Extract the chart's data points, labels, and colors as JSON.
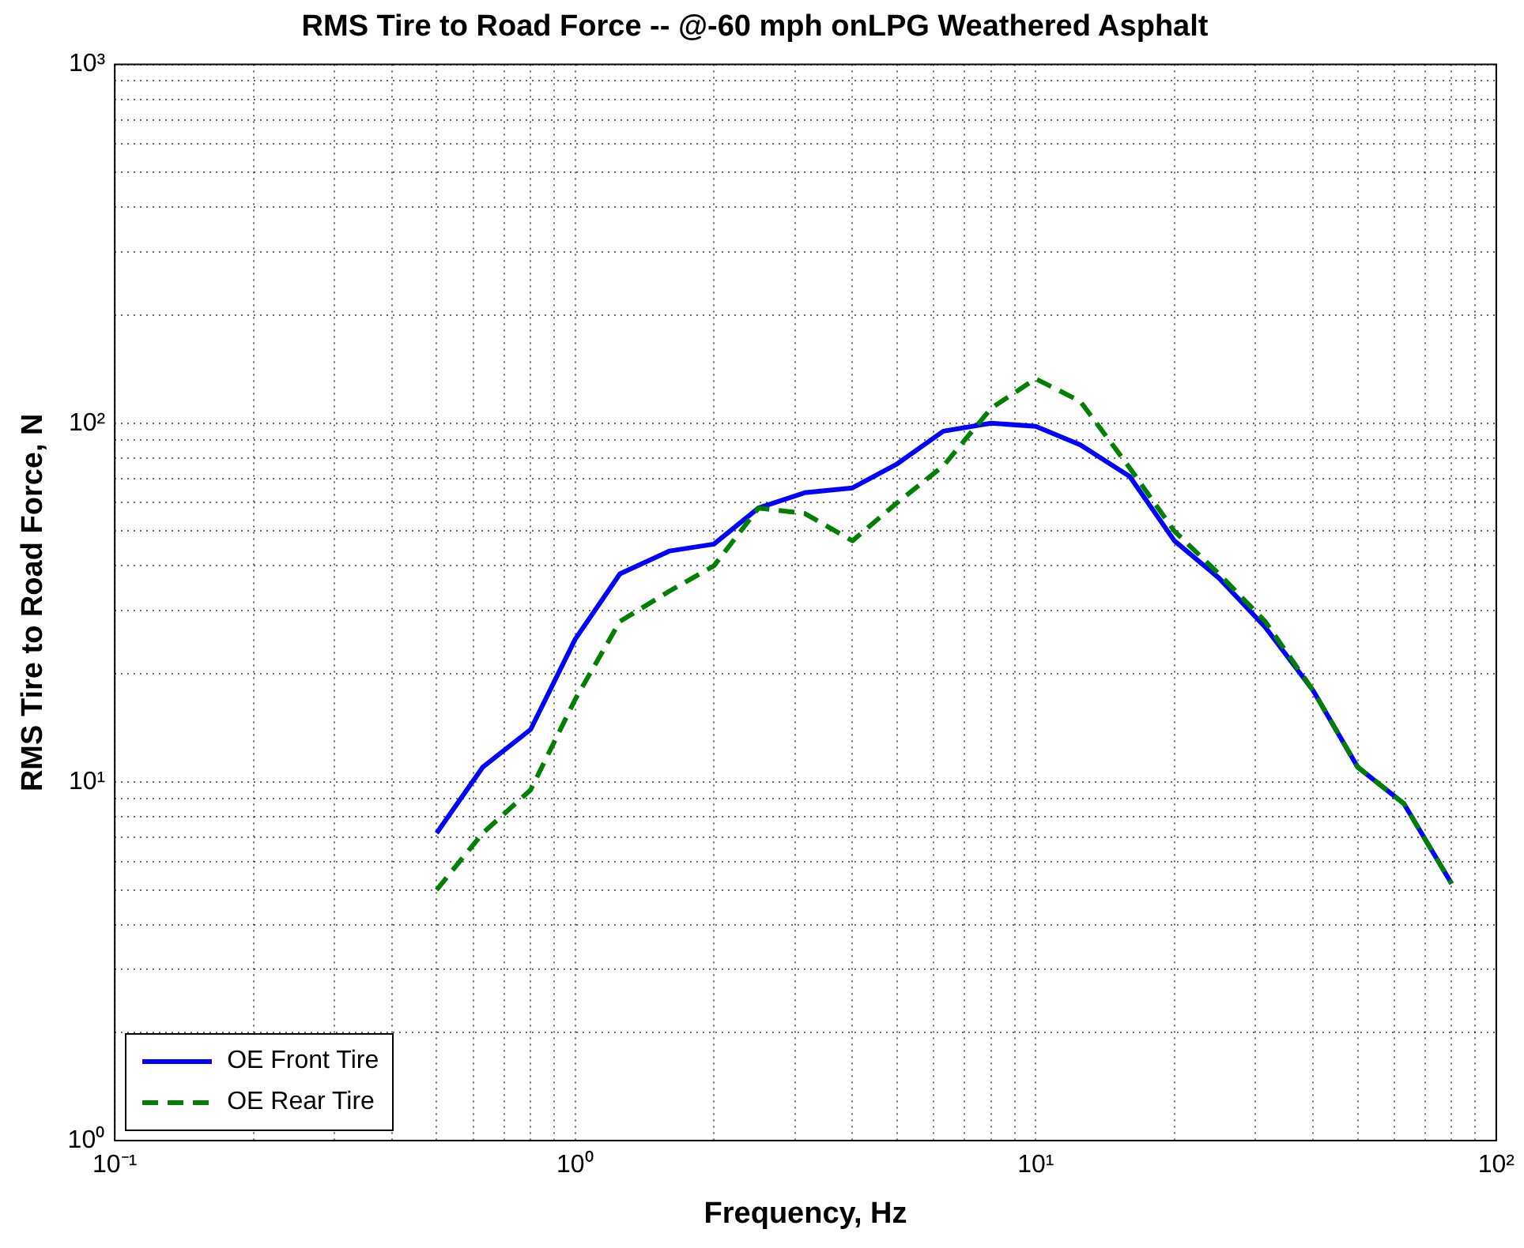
{
  "chart_data": {
    "type": "line",
    "title": "RMS Tire to Road Force -- @-60 mph onLPG Weathered Asphalt",
    "xlabel": "Frequency, Hz",
    "ylabel": "RMS Tire to Road Force, N",
    "log": "xy",
    "grid": true,
    "legend": "bottom left",
    "marker": "none",
    "x": [
      0.5,
      0.63,
      0.8,
      1,
      1.25,
      1.6,
      2,
      2.5,
      3.15,
      4,
      5,
      6.3,
      8,
      10,
      12.5,
      16,
      20,
      25,
      31.5,
      40,
      50,
      63,
      80
    ],
    "xlim": [
      0.1,
      100
    ],
    "ylim": [
      1,
      1000
    ],
    "xticks": [
      {
        "value": 0.1,
        "label": "10⁻¹"
      },
      {
        "value": 0.2,
        "label": null
      },
      {
        "value": 0.3,
        "label": null
      },
      {
        "value": 0.4,
        "label": null
      },
      {
        "value": 0.5,
        "label": null
      },
      {
        "value": 0.6,
        "label": null
      },
      {
        "value": 0.7,
        "label": null
      },
      {
        "value": 0.8,
        "label": null
      },
      {
        "value": 0.9,
        "label": null
      },
      {
        "value": 1,
        "label": "10⁰"
      },
      {
        "value": 2,
        "label": null
      },
      {
        "value": 3,
        "label": null
      },
      {
        "value": 4,
        "label": null
      },
      {
        "value": 5,
        "label": null
      },
      {
        "value": 6,
        "label": null
      },
      {
        "value": 7,
        "label": null
      },
      {
        "value": 8,
        "label": null
      },
      {
        "value": 9,
        "label": null
      },
      {
        "value": 10,
        "label": "10¹"
      },
      {
        "value": 20,
        "label": null
      },
      {
        "value": 30,
        "label": null
      },
      {
        "value": 40,
        "label": null
      },
      {
        "value": 50,
        "label": null
      },
      {
        "value": 60,
        "label": null
      },
      {
        "value": 70,
        "label": null
      },
      {
        "value": 80,
        "label": null
      },
      {
        "value": 90,
        "label": null
      },
      {
        "value": 100,
        "label": "10²"
      }
    ],
    "yticks": [
      {
        "value": 1,
        "label": "10⁰"
      },
      {
        "value": 2,
        "label": null
      },
      {
        "value": 3,
        "label": null
      },
      {
        "value": 4,
        "label": null
      },
      {
        "value": 5,
        "label": null
      },
      {
        "value": 6,
        "label": null
      },
      {
        "value": 7,
        "label": null
      },
      {
        "value": 8,
        "label": null
      },
      {
        "value": 9,
        "label": null
      },
      {
        "value": 10,
        "label": "10¹"
      },
      {
        "value": 20,
        "label": null
      },
      {
        "value": 30,
        "label": null
      },
      {
        "value": 40,
        "label": null
      },
      {
        "value": 50,
        "label": null
      },
      {
        "value": 60,
        "label": null
      },
      {
        "value": 70,
        "label": null
      },
      {
        "value": 80,
        "label": null
      },
      {
        "value": 90,
        "label": null
      },
      {
        "value": 100,
        "label": "10²"
      },
      {
        "value": 200,
        "label": null
      },
      {
        "value": 300,
        "label": null
      },
      {
        "value": 400,
        "label": null
      },
      {
        "value": 500,
        "label": null
      },
      {
        "value": 600,
        "label": null
      },
      {
        "value": 700,
        "label": null
      },
      {
        "value": 800,
        "label": null
      },
      {
        "value": 900,
        "label": null
      },
      {
        "value": 1000,
        "label": "10³"
      }
    ],
    "series": [
      {
        "name": "OE Front Tire",
        "color": "#0000ff",
        "line_style": "solid",
        "values": [
          7.2,
          11,
          14,
          25,
          38,
          44,
          46,
          58,
          64,
          66,
          77,
          95,
          100,
          98,
          87,
          71,
          47,
          37,
          27,
          18,
          11,
          8.7,
          5.2
        ]
      },
      {
        "name": "OE Rear Tire",
        "color": "#008000",
        "line_style": "dashed",
        "values": [
          5,
          7.2,
          9.5,
          17,
          28,
          34,
          40,
          58,
          56,
          47,
          60,
          76,
          110,
          133,
          115,
          75,
          50,
          38,
          28,
          18,
          11,
          8.7,
          5.2
        ]
      }
    ]
  }
}
